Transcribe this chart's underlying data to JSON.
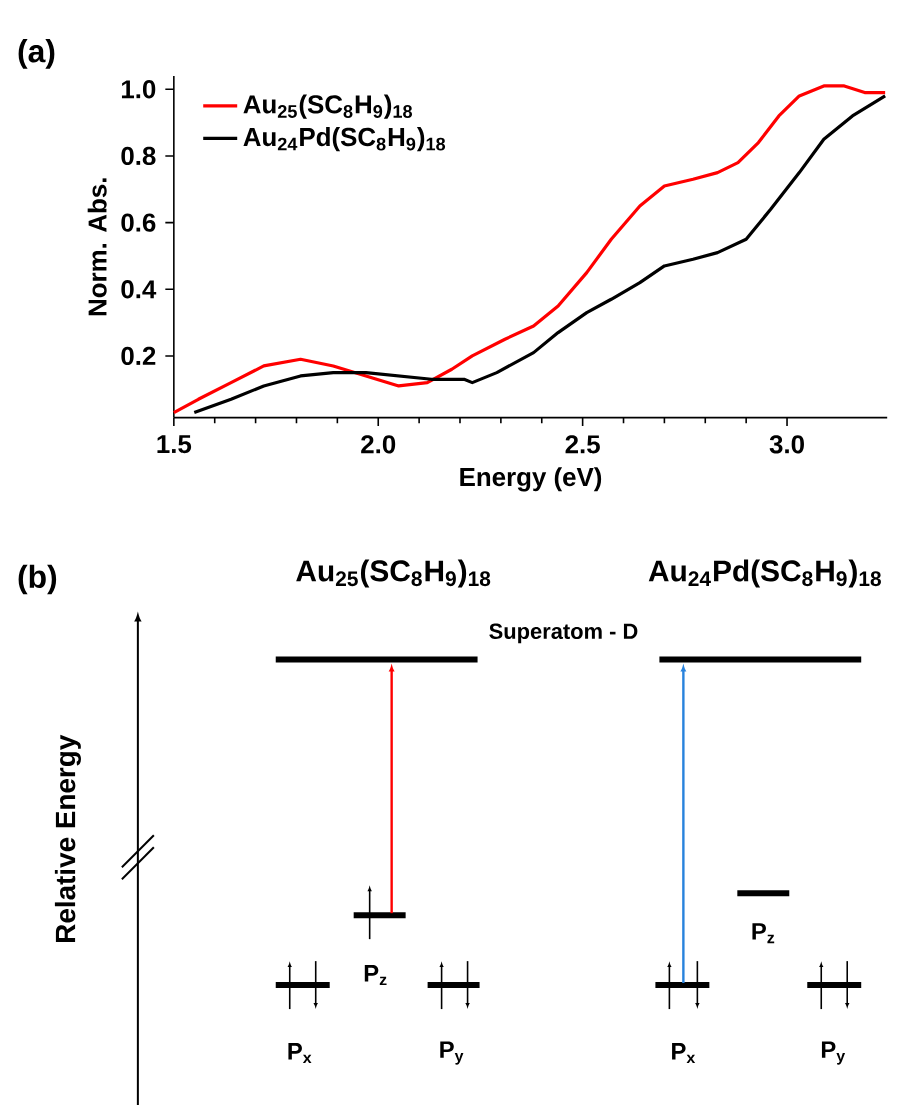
{
  "chart_data": [
    {
      "type": "line",
      "title": "(a)",
      "xlabel": "Energy (eV)",
      "ylabel": "Norm. Abs.",
      "xlim": [
        1.5,
        3.245
      ],
      "ylim": [
        0.015,
        1.04
      ],
      "xticks": [
        1.5,
        {
          "value": 2,
          "label": "2.0"
        },
        2.5,
        {
          "value": 3,
          "label": "3.0"
        }
      ],
      "yticks": [
        0.2,
        0.4,
        0.6,
        0.8,
        {
          "value": 1,
          "label": "1.0"
        }
      ],
      "legend": "top left",
      "series": [
        {
          "name": "Au$_{25}$(SC$_{8}$H$_{9}$)$_{18}$",
          "color": "#ff0000",
          "x": [
            1.5,
            1.56,
            1.64,
            1.72,
            1.81,
            1.89,
            1.97,
            2.05,
            2.12,
            2.18,
            2.23,
            2.31,
            2.38,
            2.44,
            2.51,
            2.57,
            2.64,
            2.7,
            2.77,
            2.83,
            2.88,
            2.93,
            2.98,
            3.03,
            3.09,
            3.14,
            3.19,
            3.24
          ],
          "values": [
            0.03,
            0.07,
            0.12,
            0.17,
            0.19,
            0.17,
            0.14,
            0.11,
            0.12,
            0.16,
            0.2,
            0.25,
            0.29,
            0.35,
            0.45,
            0.55,
            0.65,
            0.71,
            0.73,
            0.75,
            0.78,
            0.84,
            0.92,
            0.98,
            1.01,
            1.01,
            0.99,
            0.99
          ]
        },
        {
          "name": "Au$_{24}$Pd(SC$_{8}$H$_{9}$)$_{18}$",
          "color": "#000000",
          "x": [
            1.55,
            1.64,
            1.72,
            1.81,
            1.89,
            1.97,
            2.05,
            2.13,
            2.21,
            2.23,
            2.29,
            2.38,
            2.44,
            2.51,
            2.57,
            2.64,
            2.7,
            2.77,
            2.83,
            2.9,
            2.96,
            3.03,
            3.09,
            3.16,
            3.24
          ],
          "values": [
            0.03,
            0.07,
            0.11,
            0.14,
            0.15,
            0.15,
            0.14,
            0.13,
            0.13,
            0.12,
            0.15,
            0.21,
            0.27,
            0.33,
            0.37,
            0.42,
            0.47,
            0.49,
            0.51,
            0.55,
            0.64,
            0.75,
            0.85,
            0.92,
            0.98
          ]
        }
      ]
    },
    {
      "type": "other",
      "title": "(b)",
      "ylabel": "Relative Energy",
      "annotations": [
        "Au$_{25}$(SC$_{8}$H$_{9}$)$_{18}$",
        "Au$_{24}$Pd(SC$_{8}$H$_{9}$)$_{18}$",
        "Superatom - D",
        "P$_{x}$",
        "P$_{z}$",
        "P$_{y}$",
        "P$_{x}$",
        "P$_{z}$",
        "P$_{y}$"
      ]
    }
  ]
}
